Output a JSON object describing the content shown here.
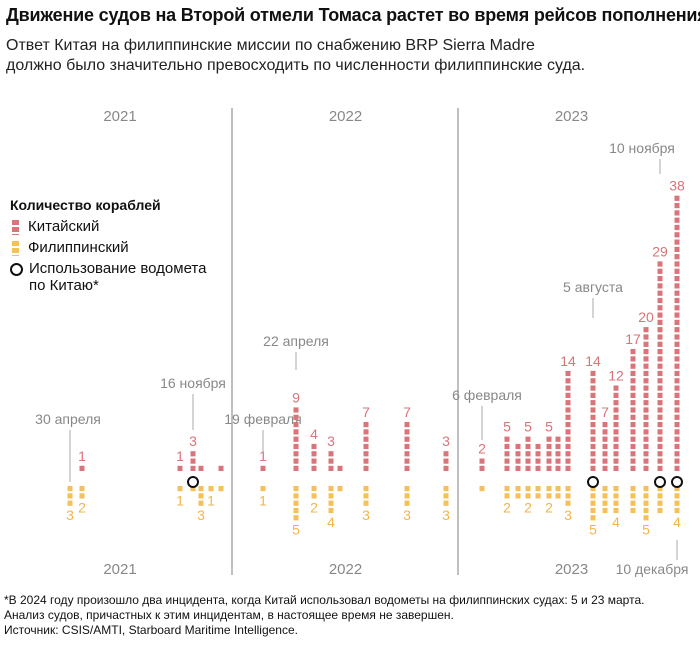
{
  "title": "Движение судов на Второй отмели Томаса растет во время рейсов пополнения запасов",
  "subtitle": {
    "line1": "Ответ Китая на филиппинские миссии по снабжению BRP Sierra Madre",
    "line2": "должно было значительно превосходить по численности филиппинские суда."
  },
  "legend": {
    "title": "Количество кораблей",
    "chinese": "Китайский",
    "philippine": "Филиппинский",
    "water_cannon_line1": "Использование водомета",
    "water_cannon_line2": "по Китаю*"
  },
  "colors": {
    "chinese": "#d9747a",
    "philippine": "#f4c05a",
    "label_yellow": "#f2b64a",
    "divider": "#aaaaaa",
    "annotation": "#888888"
  },
  "footer": {
    "note_line1": "*В 2024 году произошло два инцидента, когда Китай использовал водометы на филиппинских судах: 5 и 23 марта.",
    "note_line2": "Анализ судов, причастных к этим инцидентам, в настоящее время не завершен.",
    "source": "Источник: CSIS/AMTI, Starboard Maritime Intelligence."
  },
  "chart_data": {
    "type": "bar",
    "title": "Количество кораблей",
    "series": [
      {
        "name": "Китайский",
        "role": "up"
      },
      {
        "name": "Филиппинский",
        "role": "down"
      }
    ],
    "years": [
      {
        "label": "2021"
      },
      {
        "label": "2022"
      },
      {
        "label": "2023"
      }
    ],
    "events": [
      {
        "year": "2021",
        "date": "30 апреля",
        "chinese": 0,
        "philippine": 3,
        "water_cannon": false,
        "show_p": "3"
      },
      {
        "year": "2021",
        "chinese": 1,
        "philippine": 2,
        "water_cannon": false,
        "show_c": "1",
        "show_p": "2"
      },
      {
        "year": "2021",
        "chinese": 1,
        "philippine": 1,
        "water_cannon": false,
        "show_c": "1",
        "show_p": "1"
      },
      {
        "year": "2021",
        "date": "16 ноября",
        "chinese": 3,
        "philippine": 1,
        "water_cannon": true,
        "show_c": "3"
      },
      {
        "year": "2021",
        "chinese": 1,
        "philippine": 3,
        "water_cannon": false,
        "show_p": "3"
      },
      {
        "year": "2021",
        "chinese": 0,
        "philippine": 1,
        "water_cannon": false,
        "show_p": "1"
      },
      {
        "year": "2021",
        "chinese": 1,
        "philippine": 1,
        "water_cannon": false
      },
      {
        "year": "2022",
        "date": "19 февраля",
        "chinese": 1,
        "philippine": 1,
        "water_cannon": false,
        "show_c": "1",
        "show_p": "1"
      },
      {
        "year": "2022",
        "date": "22 апреля",
        "chinese": 9,
        "philippine": 5,
        "water_cannon": false,
        "show_c": "9",
        "show_p": "5"
      },
      {
        "year": "2022",
        "chinese": 4,
        "philippine": 2,
        "water_cannon": false,
        "show_c": "4",
        "show_p": "2"
      },
      {
        "year": "2022",
        "chinese": 3,
        "philippine": 4,
        "water_cannon": false,
        "show_c": "3",
        "show_p": "4"
      },
      {
        "year": "2022",
        "chinese": 1,
        "philippine": 1,
        "water_cannon": false
      },
      {
        "year": "2022",
        "chinese": 7,
        "philippine": 3,
        "water_cannon": false,
        "show_c": "7",
        "show_p": "3"
      },
      {
        "year": "2022",
        "chinese": 7,
        "philippine": 3,
        "water_cannon": false,
        "show_c": "7",
        "show_p": "3"
      },
      {
        "year": "2022",
        "chinese": 3,
        "philippine": 3,
        "water_cannon": false,
        "show_c": "3",
        "show_p": "3"
      },
      {
        "year": "2023",
        "date": "6 февраля",
        "chinese": 2,
        "philippine": 1,
        "water_cannon": false,
        "show_c": "2"
      },
      {
        "year": "2023",
        "chinese": 5,
        "philippine": 2,
        "water_cannon": false,
        "show_c": "5",
        "show_p": "2"
      },
      {
        "year": "2023",
        "chinese": 4,
        "philippine": 2,
        "water_cannon": false
      },
      {
        "year": "2023",
        "chinese": 5,
        "philippine": 2,
        "water_cannon": false,
        "show_c": "5",
        "show_p": "2"
      },
      {
        "year": "2023",
        "chinese": 4,
        "philippine": 2,
        "water_cannon": false
      },
      {
        "year": "2023",
        "chinese": 5,
        "philippine": 2,
        "water_cannon": false,
        "show_c": "5",
        "show_p": "2"
      },
      {
        "year": "2023",
        "chinese": 5,
        "philippine": 2,
        "water_cannon": false
      },
      {
        "year": "2023",
        "chinese": 14,
        "philippine": 3,
        "water_cannon": false,
        "show_c": "14",
        "show_p": "3"
      },
      {
        "year": "2023",
        "date": "5 августа",
        "chinese": 14,
        "philippine": 5,
        "water_cannon": true,
        "show_c": "14",
        "show_p": "5"
      },
      {
        "year": "2023",
        "chinese": 7,
        "philippine": 4,
        "water_cannon": false,
        "show_c": "7"
      },
      {
        "year": "2023",
        "chinese": 12,
        "philippine": 4,
        "water_cannon": false,
        "show_c": "12",
        "show_p": "4"
      },
      {
        "year": "2023",
        "chinese": 17,
        "philippine": 4,
        "water_cannon": false,
        "show_c": "17"
      },
      {
        "year": "2023",
        "chinese": 20,
        "philippine": 5,
        "water_cannon": false,
        "show_c": "20",
        "show_p": "5"
      },
      {
        "year": "2023",
        "date": "10 ноября",
        "chinese": 29,
        "philippine": 4,
        "water_cannon": true,
        "show_c": "29"
      },
      {
        "year": "2023",
        "date": "10 декабря",
        "chinese": 38,
        "philippine": 4,
        "water_cannon": true,
        "show_c": "38",
        "show_p": "4"
      }
    ]
  }
}
